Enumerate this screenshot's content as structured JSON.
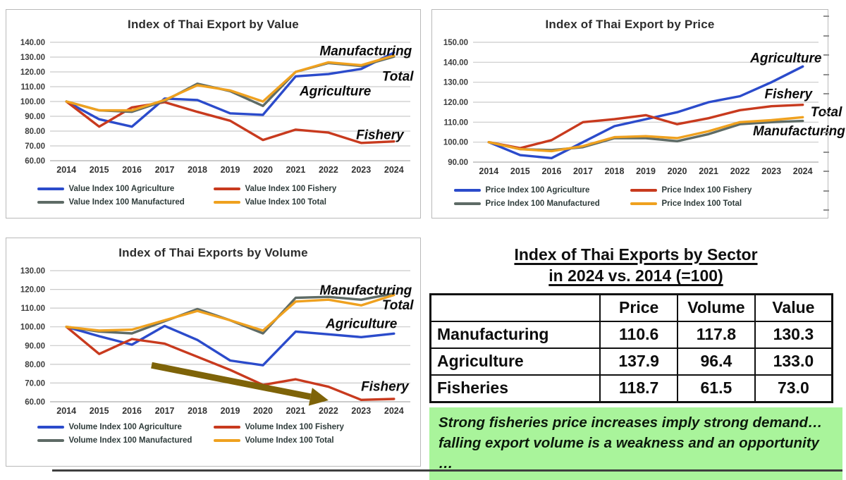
{
  "chart_data": [
    {
      "id": "value",
      "type": "line",
      "title": "Index of Thai Export by Value",
      "x": [
        2014,
        2015,
        2016,
        2017,
        2018,
        2019,
        2020,
        2021,
        2022,
        2023,
        2024
      ],
      "ylim": [
        60,
        140
      ],
      "yticks": [
        60,
        70,
        80,
        90,
        100,
        110,
        120,
        130,
        140
      ],
      "grid": true,
      "legend_position": "bottom",
      "series": [
        {
          "name": "Value Index 100 Agriculture",
          "color": "#2b4bcb",
          "values": [
            100,
            88,
            83,
            102,
            101,
            92,
            91,
            117,
            118.5,
            122,
            133
          ]
        },
        {
          "name": "Value Index 100 Fishery",
          "color": "#c83a1e",
          "values": [
            100,
            83,
            96,
            99.5,
            93,
            87,
            74,
            81,
            79,
            72,
            73
          ]
        },
        {
          "name": "Value Index 100 Manufactured",
          "color": "#5e6b66",
          "values": [
            100,
            94,
            93,
            100.5,
            112,
            107,
            97,
            120,
            126,
            124,
            130.3
          ]
        },
        {
          "name": "Value Index 100 Total",
          "color": "#efa11f",
          "values": [
            100,
            94,
            94,
            101,
            111,
            107.5,
            100,
            120,
            126.5,
            124.5,
            131
          ]
        }
      ],
      "annotations": [
        {
          "text": "Manufacturing",
          "year": 2024.55,
          "value": 134
        },
        {
          "text": "Total",
          "year": 2024.6,
          "value": 117
        },
        {
          "text": "Agriculture",
          "year": 2023.3,
          "value": 107
        },
        {
          "text": "Fishery",
          "year": 2024.3,
          "value": 77.5
        }
      ]
    },
    {
      "id": "price",
      "type": "line",
      "title": "Index of Thai Export by Price",
      "x": [
        2014,
        2015,
        2016,
        2017,
        2018,
        2019,
        2020,
        2021,
        2022,
        2023,
        2024
      ],
      "ylim": [
        90,
        150
      ],
      "yticks": [
        90,
        100,
        110,
        120,
        130,
        140,
        150
      ],
      "grid": true,
      "legend_position": "bottom",
      "right_ticks": true,
      "series": [
        {
          "name": "Price Index 100 Agriculture",
          "color": "#2b4bcb",
          "values": [
            100,
            93.5,
            92,
            100,
            108,
            111.5,
            115,
            120,
            123,
            130,
            137.9
          ]
        },
        {
          "name": "Price Index 100 Fishery",
          "color": "#c83a1e",
          "values": [
            100,
            97,
            101,
            110,
            111.5,
            113.5,
            109,
            112,
            116,
            118,
            118.7
          ]
        },
        {
          "name": "Price Index 100 Manufactured",
          "color": "#5e6b66",
          "values": [
            100,
            96.5,
            96,
            97.5,
            102,
            102,
            100.5,
            104,
            109,
            110,
            110.6
          ]
        },
        {
          "name": "Price Index 100 Total",
          "color": "#efa11f",
          "values": [
            100,
            96.5,
            95.5,
            98,
            102.5,
            103,
            102,
            105.5,
            110,
            111,
            112.5
          ]
        }
      ],
      "annotations": [
        {
          "text": "Agriculture",
          "year": 2024.6,
          "value": 142
        },
        {
          "text": "Fishery",
          "year": 2024.3,
          "value": 124
        },
        {
          "text": "Total",
          "year": 2025.25,
          "value": 115
        },
        {
          "text": "Manufacturing",
          "year": 2025.35,
          "value": 105.5
        }
      ]
    },
    {
      "id": "volume",
      "type": "line",
      "title": "Index of Thai Exports by Volume",
      "x": [
        2014,
        2015,
        2016,
        2017,
        2018,
        2019,
        2020,
        2021,
        2022,
        2023,
        2024
      ],
      "ylim": [
        60,
        130
      ],
      "yticks": [
        60,
        70,
        80,
        90,
        100,
        110,
        120,
        130
      ],
      "grid": true,
      "legend_position": "bottom",
      "series": [
        {
          "name": "Volume Index 100 Agriculture",
          "color": "#2b4bcb",
          "values": [
            100,
            95,
            90.5,
            100.5,
            93,
            82,
            79.5,
            97.5,
            96,
            94.5,
            96.4
          ]
        },
        {
          "name": "Volume Index 100 Fishery",
          "color": "#c83a1e",
          "values": [
            100,
            85.5,
            93.5,
            91,
            84,
            77,
            69,
            72,
            68,
            61,
            61.5
          ]
        },
        {
          "name": "Volume Index 100 Manufactured",
          "color": "#5e6b66",
          "values": [
            100,
            97.5,
            96.5,
            103,
            109.5,
            103.5,
            96.5,
            115.5,
            116,
            114.5,
            117.8
          ]
        },
        {
          "name": "Volume Index 100 Total",
          "color": "#efa11f",
          "values": [
            100,
            98,
            98.5,
            103.5,
            108.5,
            103.5,
            98,
            113.5,
            114.5,
            111.5,
            117
          ]
        }
      ],
      "annotations": [
        {
          "text": "Manufacturing",
          "year": 2024.55,
          "value": 119.5
        },
        {
          "text": "Total",
          "year": 2024.6,
          "value": 111.5
        },
        {
          "text": "Agriculture",
          "year": 2024.1,
          "value": 101.5
        },
        {
          "text": "Fishery",
          "year": 2024.45,
          "value": 68
        }
      ],
      "arrow": {
        "from": {
          "year": 2016.6,
          "value": 79.5
        },
        "to": {
          "year": 2022.0,
          "value": 60.8
        },
        "color": "#7e6308"
      }
    }
  ],
  "sector_table": {
    "title_line1": "Index of Thai Exports by Sector",
    "title_line2": "in 2024 vs. 2014 (=100)",
    "columns": [
      "",
      "Price",
      "Volume",
      "Value"
    ],
    "rows": [
      {
        "label": "Manufacturing",
        "price": "110.6",
        "volume": "117.8",
        "value": "130.3"
      },
      {
        "label": "Agriculture",
        "price": "137.9",
        "volume": "96.4",
        "value": "133.0"
      },
      {
        "label": "Fisheries",
        "price": "118.7",
        "volume": "61.5",
        "value": "73.0"
      }
    ]
  },
  "note": {
    "text": "Strong fisheries price increases imply strong demand… falling export volume is a weakness and an opportunity …",
    "background": "#a9f49b"
  }
}
